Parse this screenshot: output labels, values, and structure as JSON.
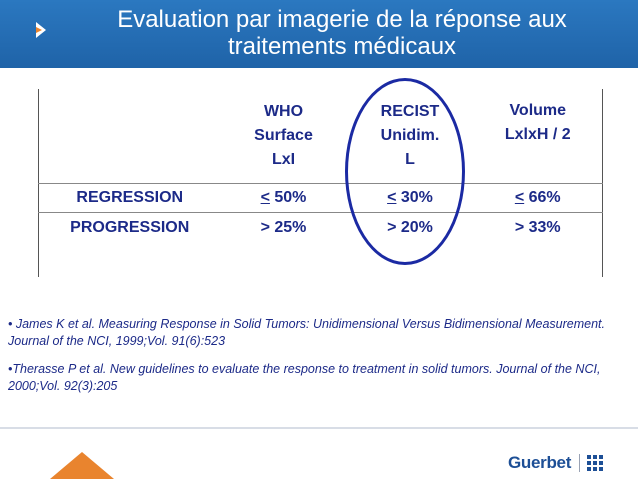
{
  "header": {
    "title_line1": "Evaluation par imagerie de la réponse aux",
    "title_line2": "traitements médicaux",
    "arrow_icon": "chevron-arrow-icon"
  },
  "table": {
    "columns": [
      {
        "lines": [
          "WHO",
          "Surface",
          "LxI"
        ]
      },
      {
        "lines": [
          "RECIST",
          "Unidim.",
          "L"
        ]
      },
      {
        "lines": [
          "Volume",
          "LxlxH / 2"
        ]
      }
    ],
    "rows": [
      {
        "label": "REGRESSION",
        "cells": [
          {
            "op": "<",
            "value": " 50%"
          },
          {
            "op": "<",
            "value": " 30%"
          },
          {
            "op": "<",
            "value": " 66%"
          }
        ]
      },
      {
        "label": "PROGRESSION",
        "cells": [
          {
            "op": ">",
            "value": " 25%"
          },
          {
            "op": ">",
            "value": " 20%"
          },
          {
            "op": ">",
            "value": " 33%"
          }
        ]
      }
    ]
  },
  "references": [
    "• James K et al. Measuring Response in Solid Tumors: Unidimensional Versus Bidimensional Measurement. Journal of the NCI, 1999;Vol. 91(6):523",
    "•Therasse P et al. New guidelines to evaluate the response to treatment in solid tumors. Journal of the NCI, 2000;Vol. 92(3):205"
  ],
  "footer": {
    "brand": "Guerbet",
    "brand_color": "#1d4f96",
    "accent_color": "#e9842e"
  }
}
